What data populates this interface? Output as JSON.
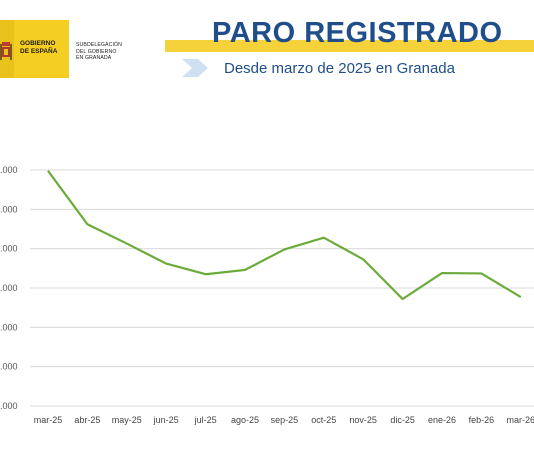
{
  "header": {
    "logo_main": "GOBIERNO\nDE ESPAÑA",
    "logo_sub": "SUBDELEGACIÓN\nDEL GOBIERNO\nEN GRANADA",
    "title": "PARO REGISTRADO",
    "subtitle": "Desde marzo de 2025 en Granada"
  },
  "colors": {
    "title": "#1f4e8a",
    "accent_bar": "#f5d23a",
    "line": "#6aab3a",
    "grid": "#d9d9d9"
  },
  "chart_data": {
    "type": "line",
    "categories": [
      "mar-25",
      "abr-25",
      "may-25",
      "jun-25",
      "jul-25",
      "ago-25",
      "sep-25",
      "oct-25",
      "nov-25",
      "dic-25",
      "ene-26",
      "feb-26",
      "mar-26"
    ],
    "series": [
      {
        "values": [
          5.98,
          4.62,
          4.13,
          3.62,
          3.35,
          3.46,
          3.98,
          4.28,
          3.73,
          2.72,
          3.38,
          3.37,
          2.77
        ]
      }
    ],
    "ytick_labels": [
      ".000",
      ".000",
      ".000",
      ".000",
      ".000",
      ".000",
      ".000"
    ],
    "ylim": [
      0,
      6
    ],
    "grid": true,
    "legend": "none"
  }
}
